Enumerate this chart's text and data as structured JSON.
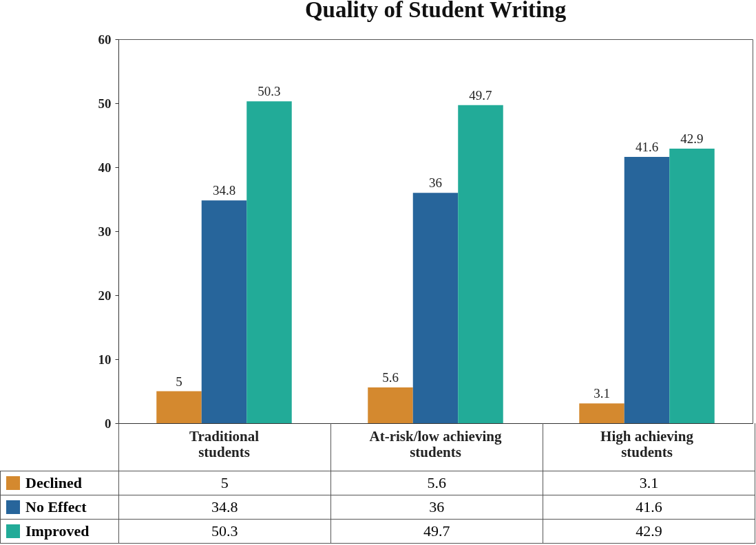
{
  "chart_data": {
    "type": "bar",
    "title": "Quality of Student Writing",
    "categories": [
      "Traditional students",
      "At-risk/low achieving students",
      "High achieving students"
    ],
    "series": [
      {
        "name": "Declined",
        "color": "#d4892f",
        "values": [
          5,
          5.6,
          3.1
        ],
        "value_labels": [
          "5",
          "5.6",
          "3.1"
        ]
      },
      {
        "name": "No Effect",
        "color": "#27659b",
        "values": [
          34.8,
          36,
          41.6
        ],
        "value_labels": [
          "34.8",
          "36",
          "41.6"
        ]
      },
      {
        "name": "Improved",
        "color": "#22ab98",
        "values": [
          50.3,
          49.7,
          42.9
        ],
        "value_labels": [
          "50.3",
          "49.7",
          "42.9"
        ]
      }
    ],
    "annotations": [
      "5",
      "5.6",
      "3.1",
      "34.8",
      "36",
      "41.6",
      "50.3",
      "49.7",
      "42.9"
    ],
    "ylim": [
      0,
      60
    ],
    "yticks": [
      0,
      10,
      20,
      30,
      40,
      50,
      60
    ],
    "grid": false,
    "legend": "bottom"
  }
}
